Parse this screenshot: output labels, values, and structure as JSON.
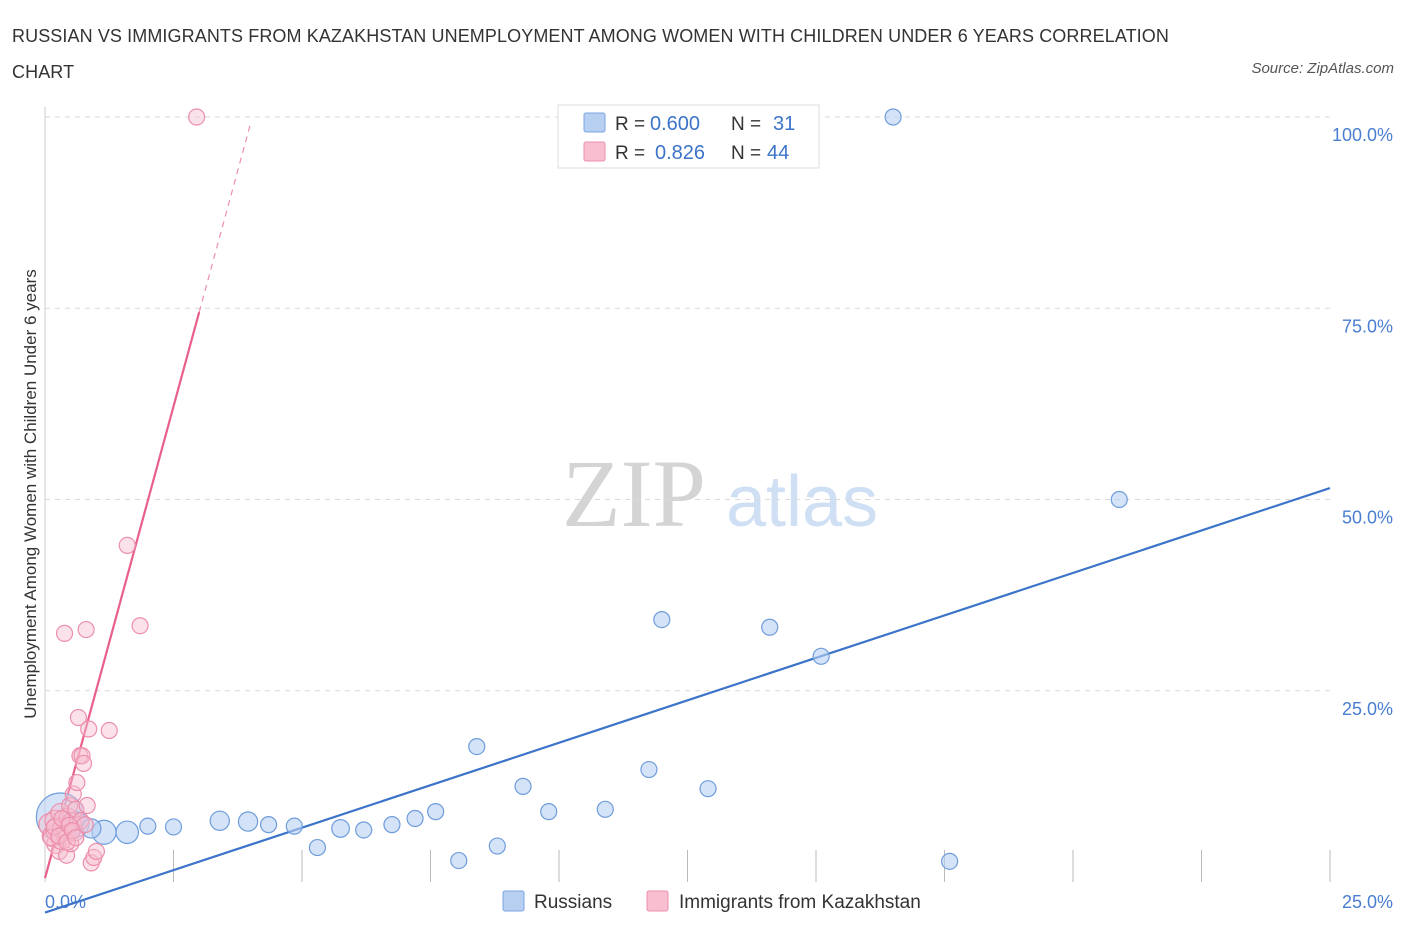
{
  "title": "RUSSIAN VS IMMIGRANTS FROM KAZAKHSTAN UNEMPLOYMENT AMONG WOMEN WITH CHILDREN UNDER 6 YEARS CORRELATION CHART",
  "source": "Source: ZipAtlas.com",
  "watermark": {
    "zip": "ZIP",
    "atlas": "atlas"
  },
  "colors": {
    "blue": "#3b74c8",
    "blue_fill": "#b7d0f2",
    "pink": "#e8608a",
    "pink_fill": "#f7bfd0",
    "grid": "#d9d9d9"
  },
  "stats": {
    "r_label": "R =",
    "n_label": "N =",
    "series": [
      {
        "r": "0.600",
        "n": "31"
      },
      {
        "r": "0.826",
        "n": "44"
      }
    ]
  },
  "chart_data": {
    "type": "scatter",
    "title": "RUSSIAN VS IMMIGRANTS FROM KAZAKHSTAN UNEMPLOYMENT AMONG WOMEN WITH CHILDREN UNDER 6 YEARS CORRELATION CHART",
    "xlabel": "",
    "ylabel": "Unemployment Among Women with Children Under 6 years",
    "xlim": [
      0,
      25
    ],
    "ylim": [
      0,
      100
    ],
    "x_tick_labels": [
      "0.0%",
      "25.0%"
    ],
    "y_tick_labels": [
      "25.0%",
      "50.0%",
      "75.0%",
      "100.0%"
    ],
    "y_ticks": [
      25,
      50,
      75,
      100
    ],
    "legend": [
      "Russians",
      "Immigrants from Kazakhstan"
    ],
    "series": [
      {
        "name": "Russians",
        "color": "#3b74c8",
        "r": 0.6,
        "n": 31,
        "trend": {
          "x": [
            0,
            25
          ],
          "y": [
            -4,
            51.5
          ],
          "dashed_x": null
        },
        "points": [
          {
            "x": 0.3,
            "y": 8.5,
            "s": 3
          },
          {
            "x": 1.15,
            "y": 6.5,
            "s": 1.5
          },
          {
            "x": 1.6,
            "y": 6.5,
            "s": 1.4
          },
          {
            "x": 2.0,
            "y": 7.3,
            "s": 1
          },
          {
            "x": 2.5,
            "y": 7.2,
            "s": 1
          },
          {
            "x": 3.4,
            "y": 8.0,
            "s": 1.2
          },
          {
            "x": 3.95,
            "y": 7.9,
            "s": 1.2
          },
          {
            "x": 4.35,
            "y": 7.5,
            "s": 1
          },
          {
            "x": 4.85,
            "y": 7.3,
            "s": 1
          },
          {
            "x": 5.3,
            "y": 4.5,
            "s": 1
          },
          {
            "x": 5.75,
            "y": 7.0,
            "s": 1.1
          },
          {
            "x": 6.2,
            "y": 6.8,
            "s": 1
          },
          {
            "x": 6.75,
            "y": 7.5,
            "s": 1
          },
          {
            "x": 7.2,
            "y": 8.3,
            "s": 1
          },
          {
            "x": 7.6,
            "y": 9.2,
            "s": 1
          },
          {
            "x": 8.05,
            "y": 2.8,
            "s": 1
          },
          {
            "x": 8.4,
            "y": 17.7,
            "s": 1
          },
          {
            "x": 8.8,
            "y": 4.7,
            "s": 1
          },
          {
            "x": 9.3,
            "y": 12.5,
            "s": 1
          },
          {
            "x": 9.8,
            "y": 9.2,
            "s": 1
          },
          {
            "x": 10.9,
            "y": 9.5,
            "s": 1
          },
          {
            "x": 11.75,
            "y": 14.7,
            "s": 1
          },
          {
            "x": 12.0,
            "y": 34.3,
            "s": 1
          },
          {
            "x": 12.9,
            "y": 12.2,
            "s": 1
          },
          {
            "x": 14.1,
            "y": 33.3,
            "s": 1
          },
          {
            "x": 15.1,
            "y": 29.5,
            "s": 1
          },
          {
            "x": 16.5,
            "y": 100.0,
            "s": 1
          },
          {
            "x": 17.6,
            "y": 2.7,
            "s": 1
          },
          {
            "x": 20.9,
            "y": 50.0,
            "s": 1
          },
          {
            "x": 0.6,
            "y": 7.5,
            "s": 1.6
          },
          {
            "x": 0.9,
            "y": 7.0,
            "s": 1.2
          }
        ]
      },
      {
        "name": "Immigrants from Kazakhstan",
        "color": "#e8608a",
        "r": 0.826,
        "n": 44,
        "trend": {
          "x": [
            0,
            3.0
          ],
          "y": [
            0.5,
            74.5
          ],
          "dashed_x": [
            3.0,
            4.0
          ]
        },
        "points": [
          {
            "x": 0.1,
            "y": 7.5,
            "s": 1.4
          },
          {
            "x": 0.15,
            "y": 6.0,
            "s": 1.3
          },
          {
            "x": 0.2,
            "y": 8.0,
            "s": 1.3
          },
          {
            "x": 0.22,
            "y": 5.0,
            "s": 1.2
          },
          {
            "x": 0.25,
            "y": 6.8,
            "s": 1.5
          },
          {
            "x": 0.28,
            "y": 4.0,
            "s": 1
          },
          {
            "x": 0.3,
            "y": 9.0,
            "s": 1.2
          },
          {
            "x": 0.32,
            "y": 5.5,
            "s": 1.2
          },
          {
            "x": 0.35,
            "y": 7.0,
            "s": 1.3
          },
          {
            "x": 0.38,
            "y": 32.5,
            "s": 1
          },
          {
            "x": 0.4,
            "y": 6.2,
            "s": 1.2
          },
          {
            "x": 0.42,
            "y": 3.5,
            "s": 1
          },
          {
            "x": 0.45,
            "y": 8.5,
            "s": 1.1
          },
          {
            "x": 0.48,
            "y": 10.0,
            "s": 1
          },
          {
            "x": 0.5,
            "y": 5.0,
            "s": 1
          },
          {
            "x": 0.52,
            "y": 7.8,
            "s": 1.2
          },
          {
            "x": 0.55,
            "y": 11.5,
            "s": 1
          },
          {
            "x": 0.58,
            "y": 6.5,
            "s": 1.1
          },
          {
            "x": 0.6,
            "y": 9.5,
            "s": 1
          },
          {
            "x": 0.62,
            "y": 13.0,
            "s": 1
          },
          {
            "x": 0.65,
            "y": 21.5,
            "s": 1
          },
          {
            "x": 0.68,
            "y": 16.5,
            "s": 1
          },
          {
            "x": 0.7,
            "y": 8.0,
            "s": 1
          },
          {
            "x": 0.72,
            "y": 16.5,
            "s": 1
          },
          {
            "x": 0.75,
            "y": 15.5,
            "s": 1
          },
          {
            "x": 0.78,
            "y": 7.5,
            "s": 1
          },
          {
            "x": 0.8,
            "y": 33.0,
            "s": 1
          },
          {
            "x": 0.82,
            "y": 10.0,
            "s": 1
          },
          {
            "x": 0.85,
            "y": 20.0,
            "s": 1
          },
          {
            "x": 0.9,
            "y": 2.5,
            "s": 1
          },
          {
            "x": 0.95,
            "y": 3.2,
            "s": 1
          },
          {
            "x": 1.0,
            "y": 4.0,
            "s": 1
          },
          {
            "x": 1.25,
            "y": 19.8,
            "s": 1
          },
          {
            "x": 1.6,
            "y": 44.0,
            "s": 1
          },
          {
            "x": 1.85,
            "y": 33.5,
            "s": 1
          },
          {
            "x": 2.95,
            "y": 100.0,
            "s": 1
          },
          {
            "x": 0.12,
            "y": 5.8,
            "s": 1
          },
          {
            "x": 0.18,
            "y": 7.2,
            "s": 1
          },
          {
            "x": 0.27,
            "y": 6.0,
            "s": 1
          },
          {
            "x": 0.33,
            "y": 8.3,
            "s": 1
          },
          {
            "x": 0.43,
            "y": 5.2,
            "s": 1
          },
          {
            "x": 0.47,
            "y": 7.4,
            "s": 1
          },
          {
            "x": 0.53,
            "y": 6.7,
            "s": 1
          },
          {
            "x": 0.6,
            "y": 5.8,
            "s": 1
          }
        ]
      }
    ]
  }
}
